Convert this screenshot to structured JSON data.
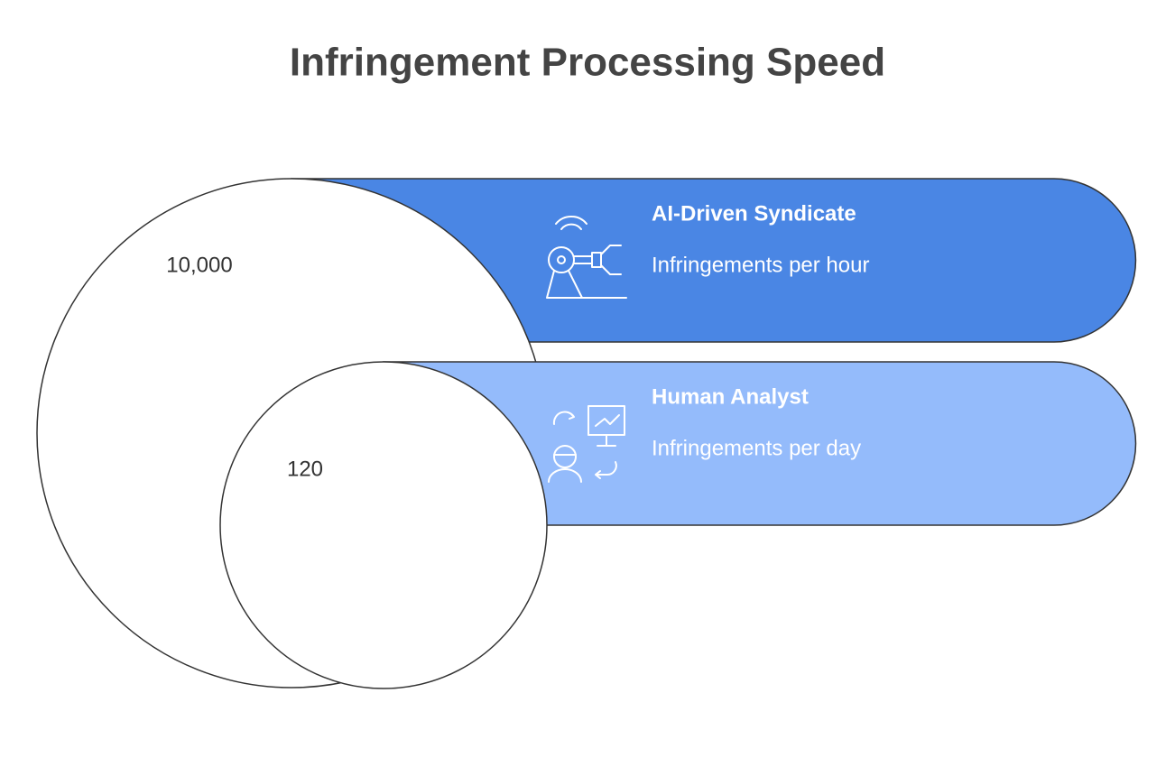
{
  "title": "Infringement Processing Speed",
  "items": [
    {
      "value": "10,000",
      "label": "AI-Driven Syndicate",
      "description": "Infringements per hour"
    },
    {
      "value": "120",
      "label": "Human Analyst",
      "description": "Infringements per day"
    }
  ]
}
